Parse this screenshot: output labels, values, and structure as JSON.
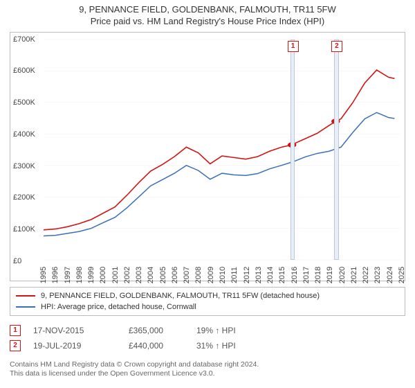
{
  "title_line1": "9, PENNANCE FIELD, GOLDENBANK, FALMOUTH, TR11 5FW",
  "title_line2": "Price paid vs. HM Land Registry's House Price Index (HPI)",
  "chart": {
    "type": "line",
    "background_color": "#ffffff",
    "grid_color": "#e0e0e0",
    "axis_color": "#bbbbbb",
    "x_min": 1995,
    "x_max": 2025,
    "x_ticks": [
      1995,
      1996,
      1997,
      1998,
      1999,
      2000,
      2001,
      2002,
      2003,
      2004,
      2005,
      2006,
      2007,
      2008,
      2009,
      2010,
      2011,
      2012,
      2013,
      2014,
      2015,
      2016,
      2017,
      2018,
      2019,
      2020,
      2021,
      2022,
      2023,
      2024,
      2025
    ],
    "y_min": 0,
    "y_max": 700000,
    "y_ticks": [
      0,
      100000,
      200000,
      300000,
      400000,
      500000,
      600000,
      700000
    ],
    "y_tick_labels": [
      "£0",
      "£100K",
      "£200K",
      "£300K",
      "£400K",
      "£500K",
      "£600K",
      "£700K"
    ],
    "y_tick_fontsize": 11,
    "x_tick_fontsize": 11,
    "series": [
      {
        "name": "red",
        "label": "9, PENNANCE FIELD, GOLDENBANK, FALMOUTH, TR11 5FW (detached house)",
        "color": "#d11414",
        "line_width": 1.6,
        "points": [
          [
            1995,
            95000
          ],
          [
            1996,
            98000
          ],
          [
            1997,
            105000
          ],
          [
            1998,
            115000
          ],
          [
            1999,
            128000
          ],
          [
            2000,
            148000
          ],
          [
            2001,
            168000
          ],
          [
            2002,
            205000
          ],
          [
            2003,
            245000
          ],
          [
            2004,
            282000
          ],
          [
            2005,
            303000
          ],
          [
            2006,
            328000
          ],
          [
            2007,
            358000
          ],
          [
            2008,
            340000
          ],
          [
            2009,
            305000
          ],
          [
            2010,
            330000
          ],
          [
            2011,
            325000
          ],
          [
            2012,
            320000
          ],
          [
            2013,
            328000
          ],
          [
            2014,
            345000
          ],
          [
            2015,
            358000
          ],
          [
            2015.88,
            365000
          ],
          [
            2016,
            368000
          ],
          [
            2017,
            385000
          ],
          [
            2018,
            402000
          ],
          [
            2019,
            427000
          ],
          [
            2019.55,
            440000
          ],
          [
            2020,
            448000
          ],
          [
            2021,
            500000
          ],
          [
            2022,
            562000
          ],
          [
            2023,
            603000
          ],
          [
            2024,
            580000
          ],
          [
            2024.5,
            576000
          ]
        ]
      },
      {
        "name": "blue",
        "label": "HPI: Average price, detached house, Cornwall",
        "color": "#3a6fb7",
        "line_width": 1.5,
        "points": [
          [
            1995,
            76000
          ],
          [
            1996,
            78000
          ],
          [
            1997,
            84000
          ],
          [
            1998,
            90000
          ],
          [
            1999,
            100000
          ],
          [
            2000,
            118000
          ],
          [
            2001,
            135000
          ],
          [
            2002,
            165000
          ],
          [
            2003,
            200000
          ],
          [
            2004,
            235000
          ],
          [
            2005,
            255000
          ],
          [
            2006,
            275000
          ],
          [
            2007,
            300000
          ],
          [
            2008,
            284000
          ],
          [
            2009,
            256000
          ],
          [
            2010,
            275000
          ],
          [
            2011,
            270000
          ],
          [
            2012,
            268000
          ],
          [
            2013,
            274000
          ],
          [
            2014,
            289000
          ],
          [
            2015,
            300000
          ],
          [
            2016,
            312000
          ],
          [
            2017,
            327000
          ],
          [
            2018,
            338000
          ],
          [
            2019,
            345000
          ],
          [
            2020,
            358000
          ],
          [
            2021,
            405000
          ],
          [
            2022,
            448000
          ],
          [
            2023,
            468000
          ],
          [
            2024,
            452000
          ],
          [
            2024.5,
            449000
          ]
        ]
      }
    ],
    "bands": [
      {
        "x_start": 2015.7,
        "x_end": 2016.05,
        "fill": "#e8eef7",
        "border": "#bcc8da"
      },
      {
        "x_start": 2019.35,
        "x_end": 2019.75,
        "fill": "#e8eef7",
        "border": "#bcc8da"
      }
    ],
    "sale_markers": [
      {
        "id": "1",
        "x": 2015.88,
        "y": 365000,
        "dot_color": "#d11414",
        "box_border": "#d11414"
      },
      {
        "id": "2",
        "x": 2019.55,
        "y": 440000,
        "dot_color": "#d11414",
        "box_border": "#d11414"
      }
    ]
  },
  "legend": [
    {
      "color": "#d11414",
      "label_path": "chart.series.0.label"
    },
    {
      "color": "#3a6fb7",
      "label_path": "chart.series.1.label"
    }
  ],
  "sales": [
    {
      "id": "1",
      "date": "17-NOV-2015",
      "price": "£365,000",
      "pct": "19% ↑ HPI"
    },
    {
      "id": "2",
      "date": "19-JUL-2019",
      "price": "£440,000",
      "pct": "31% ↑ HPI"
    }
  ],
  "footer_line1": "Contains HM Land Registry data © Crown copyright and database right 2024.",
  "footer_line2": "This data is licensed under the Open Government Licence v3.0."
}
